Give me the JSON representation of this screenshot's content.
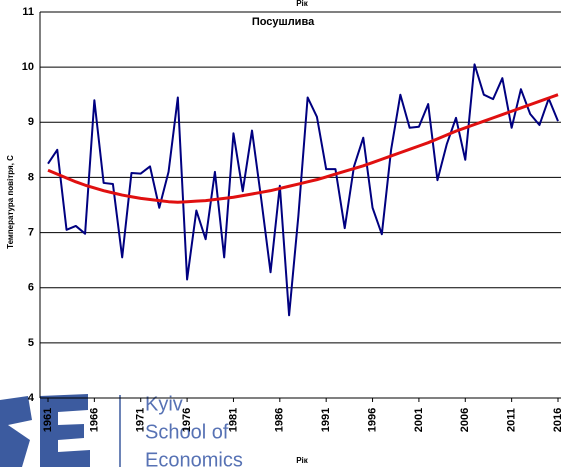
{
  "chart_data": {
    "type": "line",
    "title": "Посушлива",
    "x_label": "Рік",
    "y_label": "Температура повітря, С",
    "x": [
      1961,
      1962,
      1963,
      1964,
      1965,
      1966,
      1967,
      1968,
      1969,
      1970,
      1971,
      1972,
      1973,
      1974,
      1975,
      1976,
      1977,
      1978,
      1979,
      1980,
      1981,
      1982,
      1983,
      1984,
      1985,
      1986,
      1987,
      1988,
      1989,
      1990,
      1991,
      1992,
      1993,
      1994,
      1995,
      1996,
      1997,
      1998,
      1999,
      2000,
      2001,
      2002,
      2003,
      2004,
      2005,
      2006,
      2007,
      2008,
      2009,
      2010,
      2011,
      2012,
      2013,
      2014,
      2015,
      2016
    ],
    "series": [
      {
        "color": "#000080",
        "values": [
          8.25,
          8.5,
          7.05,
          7.12,
          6.98,
          9.4,
          7.9,
          7.88,
          6.55,
          8.08,
          8.07,
          8.2,
          7.45,
          8.1,
          9.45,
          6.15,
          7.4,
          6.88,
          8.1,
          6.55,
          8.8,
          7.75,
          8.85,
          7.6,
          6.28,
          7.85,
          5.5,
          7.3,
          9.45,
          9.1,
          8.15,
          8.15,
          7.08,
          8.2,
          8.72,
          7.45,
          6.97,
          8.5,
          9.5,
          8.9,
          8.92,
          9.33,
          7.95,
          8.6,
          9.08,
          8.32,
          10.05,
          9.5,
          9.42,
          9.8,
          8.9,
          9.6,
          9.15,
          8.95,
          9.43,
          9.02
        ]
      },
      {
        "color": "#e01010",
        "values": [
          8.13,
          8.06,
          7.99,
          7.92,
          7.86,
          7.81,
          7.76,
          7.72,
          7.68,
          7.65,
          7.62,
          7.6,
          7.58,
          7.56,
          7.55,
          7.56,
          7.57,
          7.58,
          7.6,
          7.62,
          7.64,
          7.67,
          7.7,
          7.73,
          7.76,
          7.8,
          7.84,
          7.88,
          7.92,
          7.96,
          8.01,
          8.06,
          8.11,
          8.16,
          8.21,
          8.27,
          8.33,
          8.39,
          8.45,
          8.51,
          8.57,
          8.63,
          8.7,
          8.77,
          8.84,
          8.9,
          8.96,
          9.02,
          9.08,
          9.14,
          9.2,
          9.26,
          9.32,
          9.38,
          9.44,
          9.5
        ]
      }
    ],
    "xlim": [
      1961,
      2016
    ],
    "xticks": [
      1961,
      1966,
      1971,
      1976,
      1981,
      1986,
      1991,
      1996,
      2001,
      2006,
      2011,
      2016
    ],
    "ylim": [
      4,
      11
    ],
    "yticks": [
      4,
      5,
      6,
      7,
      8,
      9,
      10,
      11
    ],
    "grid": true
  },
  "watermark": {
    "lines": [
      "Kyiv",
      "School of",
      "Economics"
    ]
  }
}
